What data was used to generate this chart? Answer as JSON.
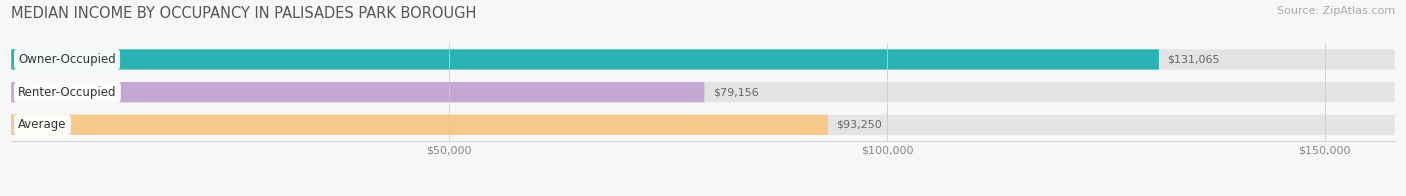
{
  "title": "MEDIAN INCOME BY OCCUPANCY IN PALISADES PARK BOROUGH",
  "source": "Source: ZipAtlas.com",
  "categories": [
    "Owner-Occupied",
    "Renter-Occupied",
    "Average"
  ],
  "values": [
    131065,
    79156,
    93250
  ],
  "bar_colors": [
    "#29b3b3",
    "#c4a8d4",
    "#f5c98a"
  ],
  "value_labels": [
    "$131,065",
    "$79,156",
    "$93,250"
  ],
  "x_ticks": [
    50000,
    100000,
    150000
  ],
  "x_tick_labels": [
    "$50,000",
    "$100,000",
    "$150,000"
  ],
  "xlim_max": 158000,
  "bar_height": 0.62,
  "background_color": "#f7f7f7",
  "track_color": "#e4e4e4",
  "title_fontsize": 10.5,
  "source_fontsize": 8,
  "label_fontsize": 8.5,
  "value_fontsize": 8,
  "tick_fontsize": 8
}
